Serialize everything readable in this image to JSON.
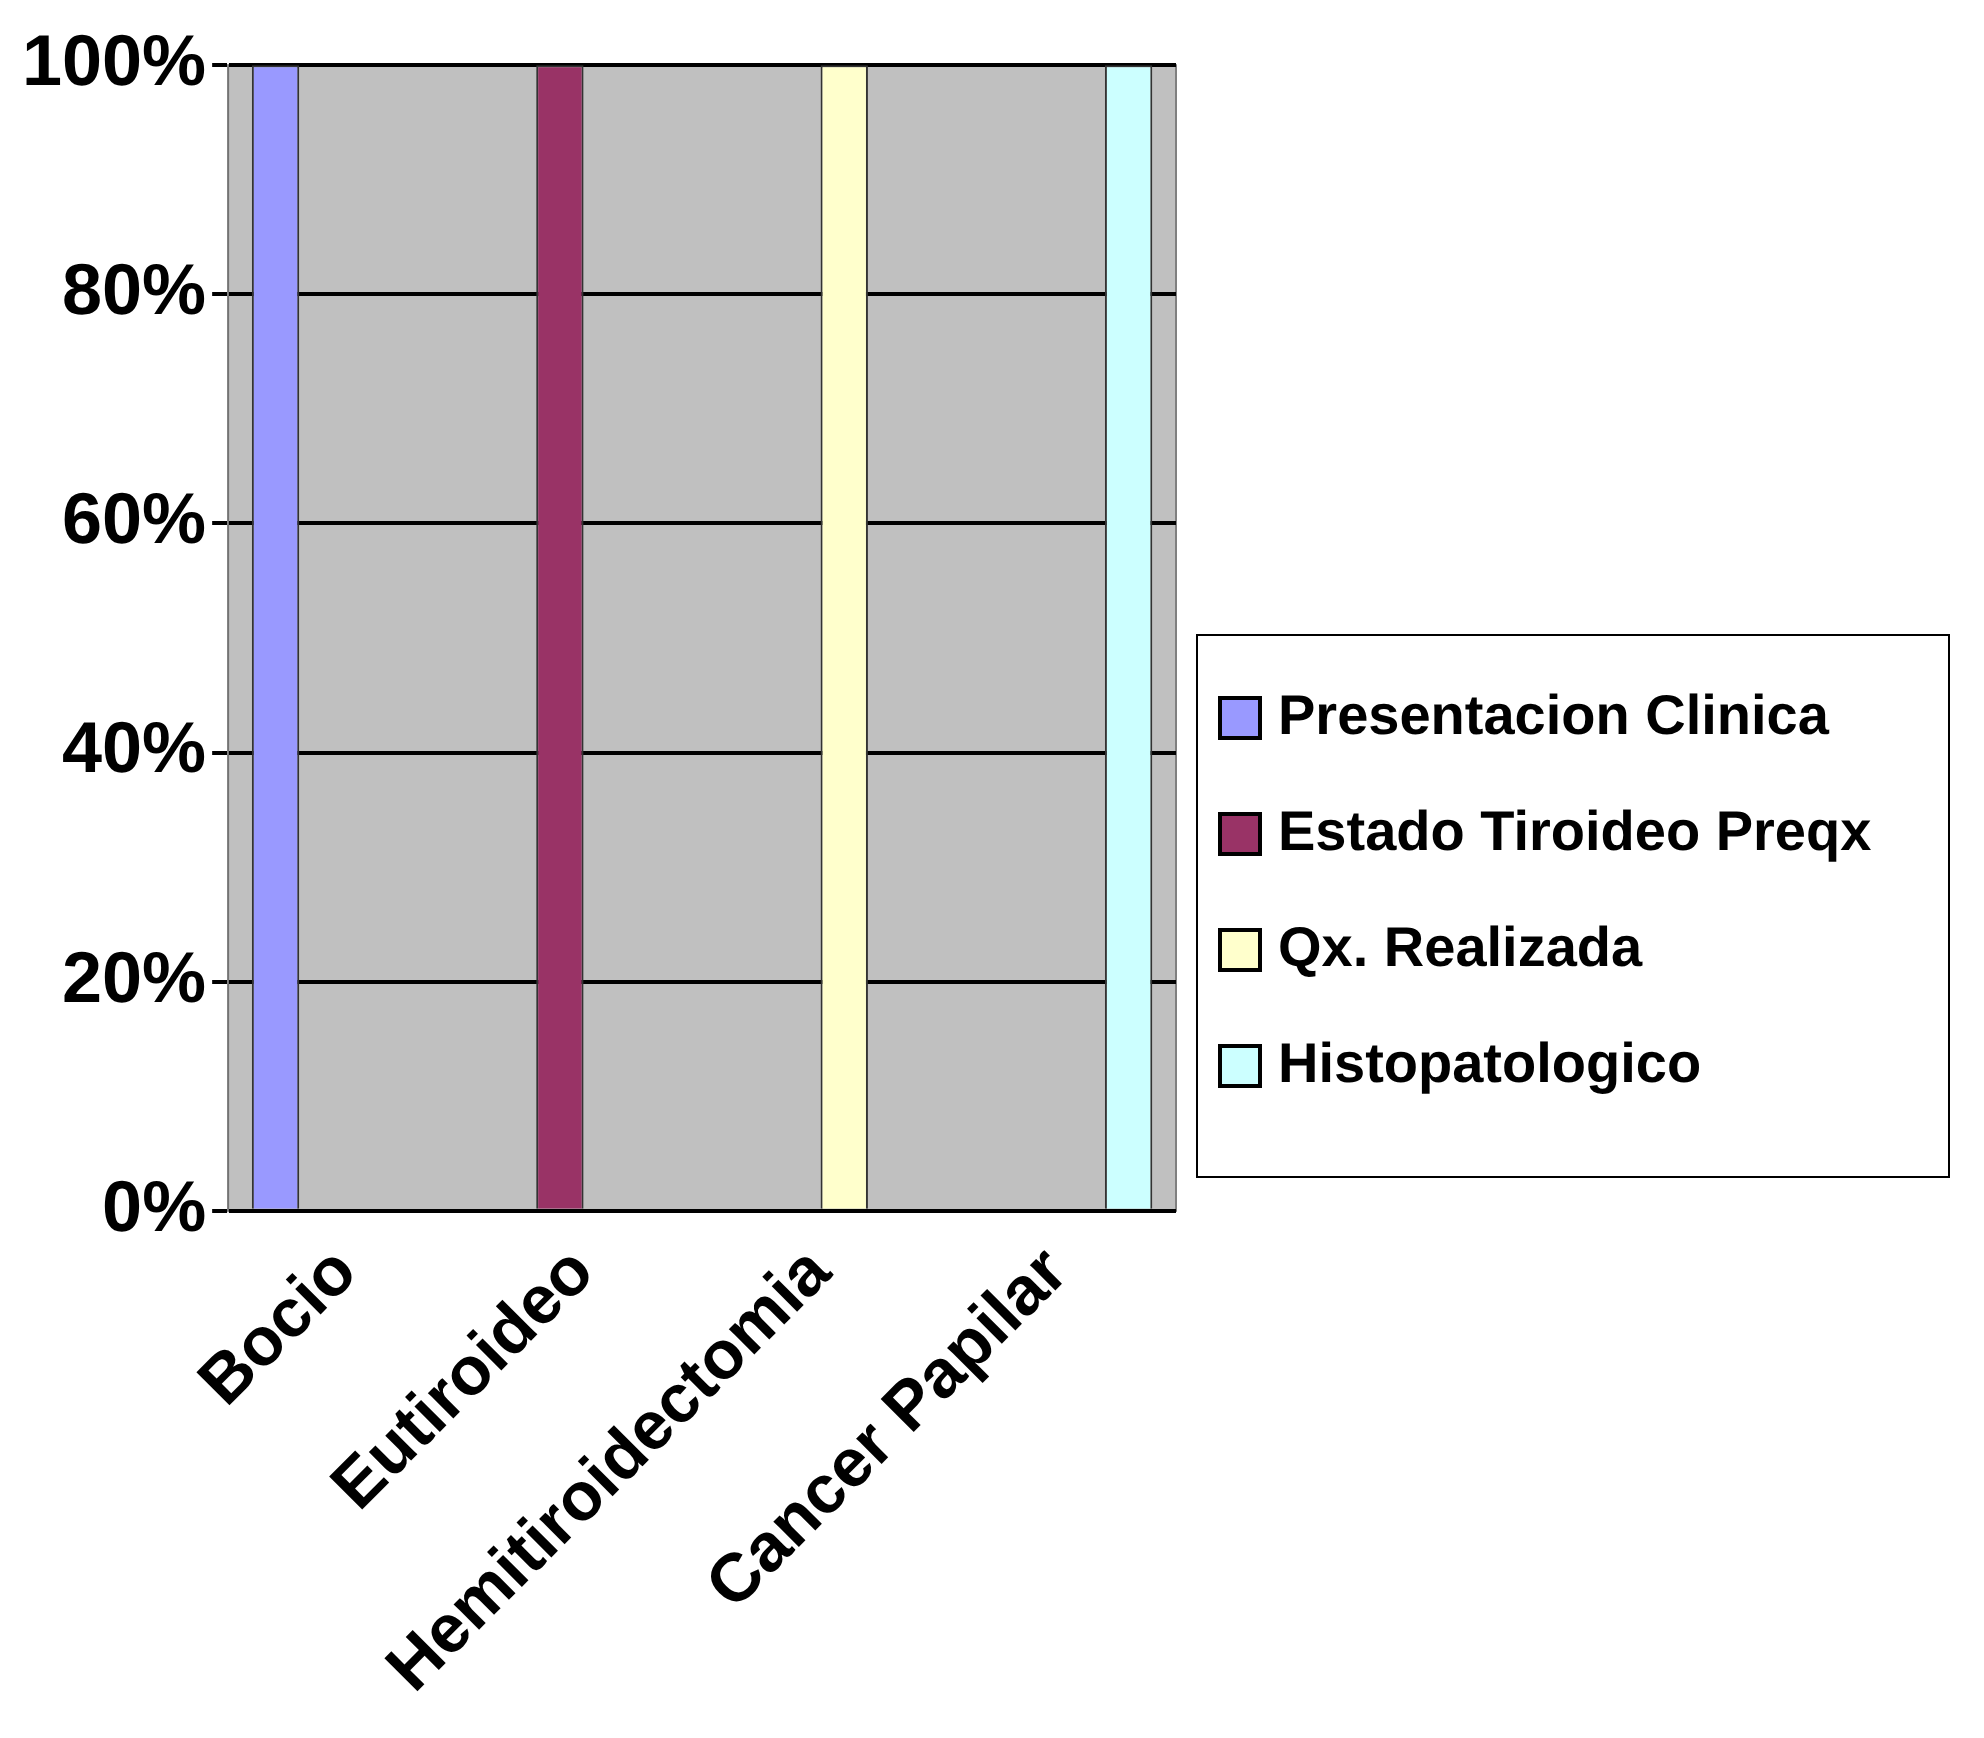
{
  "chart_data": {
    "type": "bar",
    "categories": [
      "Bocio",
      "Eutiroideo",
      "Hemitiroidectomia",
      "Cancer Papilar"
    ],
    "series": [
      {
        "name": "Presentacion Clinica",
        "color": "#9999ff",
        "values": [
          100,
          null,
          null,
          null
        ]
      },
      {
        "name": "Estado Tiroideo Preqx",
        "color": "#993366",
        "values": [
          null,
          100,
          null,
          null
        ]
      },
      {
        "name": "Qx. Realizada",
        "color": "#ffffcc",
        "values": [
          null,
          null,
          100,
          null
        ]
      },
      {
        "name": "Histopatologico",
        "color": "#ccffff",
        "values": [
          null,
          null,
          null,
          100
        ]
      }
    ],
    "ylim": [
      0,
      100
    ],
    "yticks": [
      {
        "value": 0,
        "label": "0%"
      },
      {
        "value": 20,
        "label": "20%"
      },
      {
        "value": 40,
        "label": "40%"
      },
      {
        "value": 60,
        "label": "60%"
      },
      {
        "value": 80,
        "label": "80%"
      },
      {
        "value": 100,
        "label": "100%"
      }
    ],
    "grid": "y",
    "legend": "right"
  }
}
